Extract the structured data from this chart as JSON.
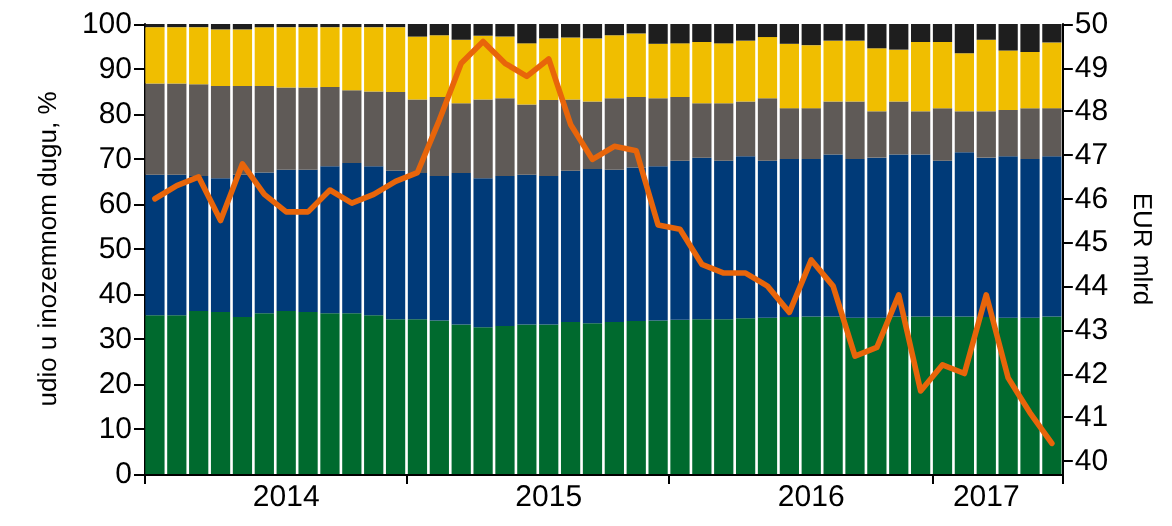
{
  "chart_data": {
    "type": "bar",
    "stacked": true,
    "ylabel": "udio u inozemnom dugu, %",
    "y2label": "EUR mlrd",
    "marker": "none",
    "categories": [
      null,
      null,
      null,
      null,
      null,
      null,
      "2014",
      null,
      null,
      null,
      null,
      null,
      null,
      null,
      null,
      null,
      null,
      null,
      "2015",
      null,
      null,
      null,
      null,
      null,
      null,
      null,
      null,
      null,
      null,
      null,
      "2016",
      null,
      null,
      null,
      null,
      null,
      null,
      null,
      "2017",
      null,
      null,
      null
    ],
    "ylim": [
      0,
      100
    ],
    "yticks": [
      0,
      10,
      20,
      30,
      40,
      50,
      60,
      70,
      80,
      90,
      100
    ],
    "y2lim": [
      39.7,
      50
    ],
    "y2ticks": [
      40,
      41,
      42,
      43,
      44,
      45,
      46,
      47,
      48,
      49,
      50
    ],
    "series": [
      {
        "color": "#006a2e",
        "values": [
          35.3,
          35.3,
          36.2,
          36.0,
          34.9,
          35.7,
          36.2,
          36.0,
          35.7,
          35.7,
          35.3,
          34.4,
          34.4,
          34.1,
          33.2,
          32.6,
          32.9,
          33.2,
          33.2,
          33.8,
          33.5,
          33.8,
          34.0,
          34.1,
          34.3,
          34.4,
          34.4,
          34.6,
          34.7,
          34.9,
          35.0,
          35.0,
          34.7,
          34.7,
          35.0,
          35.0,
          35.0,
          35.0,
          34.9,
          34.7,
          34.7,
          35.0
        ]
      },
      {
        "color": "#003a78",
        "values": [
          31.2,
          31.2,
          30.0,
          29.7,
          31.6,
          31.3,
          31.4,
          31.6,
          32.7,
          33.4,
          33.1,
          33.0,
          32.5,
          32.1,
          33.7,
          33.1,
          33.3,
          33.3,
          33.0,
          33.6,
          34.3,
          33.8,
          34.1,
          34.3,
          35.3,
          35.9,
          35.2,
          36.0,
          34.9,
          35.1,
          35.0,
          36.0,
          35.3,
          35.6,
          36.0,
          36.0,
          34.6,
          36.5,
          35.4,
          35.9,
          35.3,
          35.6
        ]
      },
      {
        "color": "#5f5a57",
        "values": [
          20.3,
          20.3,
          20.4,
          20.5,
          19.7,
          19.2,
          18.3,
          18.3,
          17.6,
          16.2,
          16.6,
          17.5,
          16.3,
          17.6,
          15.5,
          17.5,
          17.3,
          15.6,
          16.9,
          15.8,
          15.0,
          15.9,
          15.7,
          15.1,
          14.2,
          12.1,
          12.8,
          12.2,
          13.9,
          11.3,
          11.3,
          11.8,
          12.8,
          10.3,
          11.8,
          9.6,
          11.7,
          9.1,
          10.3,
          10.3,
          11.3,
          10.7
        ]
      },
      {
        "color": "#f0be00",
        "values": [
          12.5,
          12.5,
          12.7,
          12.6,
          12.6,
          13.1,
          13.4,
          13.4,
          13.3,
          14.0,
          14.3,
          14.4,
          14.0,
          13.7,
          14.1,
          14.2,
          13.7,
          13.6,
          13.7,
          13.8,
          14.0,
          14.0,
          14.1,
          12.1,
          11.9,
          13.6,
          13.3,
          13.5,
          13.6,
          14.3,
          14.0,
          13.5,
          13.5,
          14.0,
          11.5,
          15.4,
          14.7,
          12.9,
          15.9,
          13.2,
          12.5,
          14.6
        ]
      },
      {
        "color": "#1e1e1e",
        "values": [
          0.7,
          0.7,
          0.7,
          1.2,
          1.2,
          0.7,
          0.7,
          0.7,
          0.7,
          0.7,
          0.7,
          0.7,
          2.8,
          2.5,
          3.5,
          2.6,
          2.8,
          4.3,
          3.2,
          3.0,
          3.2,
          2.5,
          2.1,
          4.4,
          4.3,
          4.0,
          4.3,
          3.7,
          2.9,
          4.4,
          4.7,
          3.7,
          3.7,
          5.4,
          5.7,
          4.0,
          4.0,
          6.5,
          3.5,
          5.9,
          6.2,
          4.1
        ]
      },
      {
        "type": "line",
        "axis": "y2",
        "color": "#e8650a",
        "values": [
          46.0,
          46.3,
          46.5,
          45.5,
          46.8,
          46.1,
          45.7,
          45.7,
          46.2,
          45.9,
          46.1,
          46.4,
          46.6,
          47.8,
          49.1,
          49.6,
          49.1,
          48.8,
          49.2,
          47.7,
          46.9,
          47.2,
          47.1,
          45.4,
          45.3,
          44.5,
          44.3,
          44.3,
          44.0,
          43.4,
          44.6,
          44.0,
          42.4,
          42.6,
          43.8,
          41.6,
          42.2,
          42.0,
          43.8,
          41.9,
          41.1,
          40.4
        ]
      }
    ]
  }
}
